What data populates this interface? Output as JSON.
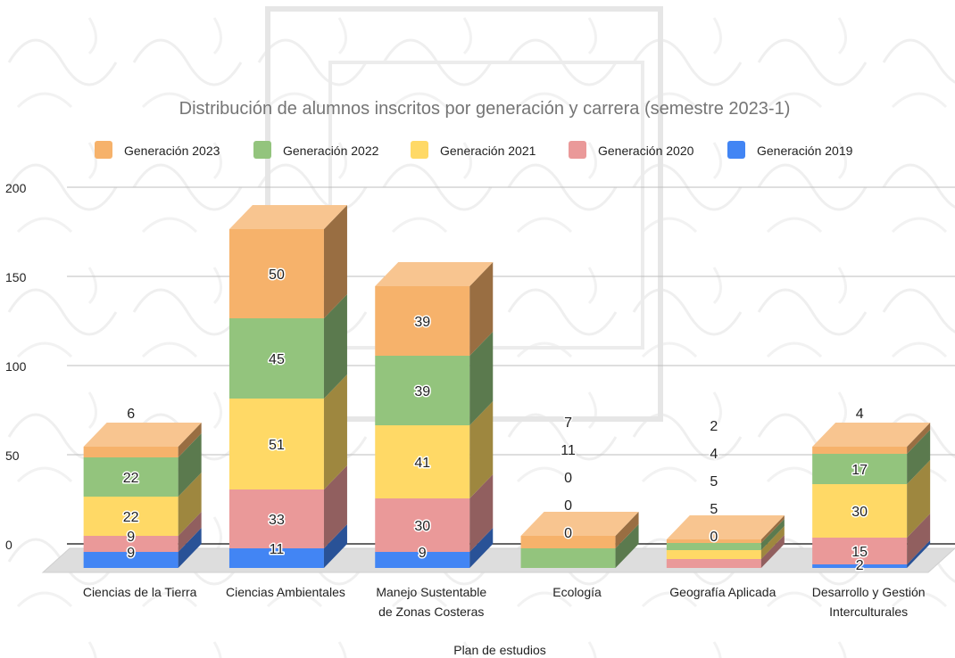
{
  "chart_data": {
    "type": "bar",
    "stacked": true,
    "three_d": true,
    "title": "Distribución de alumnos inscritos por generación y carrera (semestre 2023-1)",
    "xlabel": "Plan de estudios",
    "ylabel": "",
    "ylim": [
      0,
      200
    ],
    "yticks": [
      0,
      50,
      100,
      150,
      200
    ],
    "grid": true,
    "legend_position": "top",
    "categories": [
      [
        "Ciencias de la Tierra"
      ],
      [
        "Ciencias Ambientales"
      ],
      [
        "Manejo Sustentable",
        "de Zonas Costeras"
      ],
      [
        "Ecología"
      ],
      [
        "Geografía Aplicada"
      ],
      [
        "Desarrollo y Gestión",
        "Interculturales"
      ]
    ],
    "series": [
      {
        "name": "Generación 2019",
        "color": "#4285f4",
        "values": [
          9,
          11,
          9,
          0,
          0,
          2
        ]
      },
      {
        "name": "Generación 2020",
        "color": "#ea9999",
        "values": [
          9,
          33,
          30,
          0,
          5,
          15
        ]
      },
      {
        "name": "Generación 2021",
        "color": "#ffd966",
        "values": [
          22,
          51,
          41,
          0,
          5,
          30
        ]
      },
      {
        "name": "Generación 2022",
        "color": "#93c47d",
        "values": [
          22,
          45,
          39,
          11,
          4,
          17
        ]
      },
      {
        "name": "Generación 2023",
        "color": "#f6b26b",
        "values": [
          6,
          50,
          39,
          7,
          2,
          4
        ]
      }
    ],
    "legend_order": [
      "Generación 2023",
      "Generación 2022",
      "Generación 2021",
      "Generación 2020",
      "Generación 2019"
    ],
    "data_labels": [
      [
        "9",
        "9",
        "22",
        "22",
        "6"
      ],
      [
        "11",
        "33",
        "51",
        "45",
        "50"
      ],
      [
        "9",
        "30",
        "41",
        "39",
        "39"
      ],
      [
        "0",
        "0",
        "0",
        "11",
        "7"
      ],
      [
        "0",
        "5",
        "5",
        "4",
        "2"
      ],
      [
        "2",
        "15",
        "30",
        "17",
        "4"
      ]
    ]
  }
}
